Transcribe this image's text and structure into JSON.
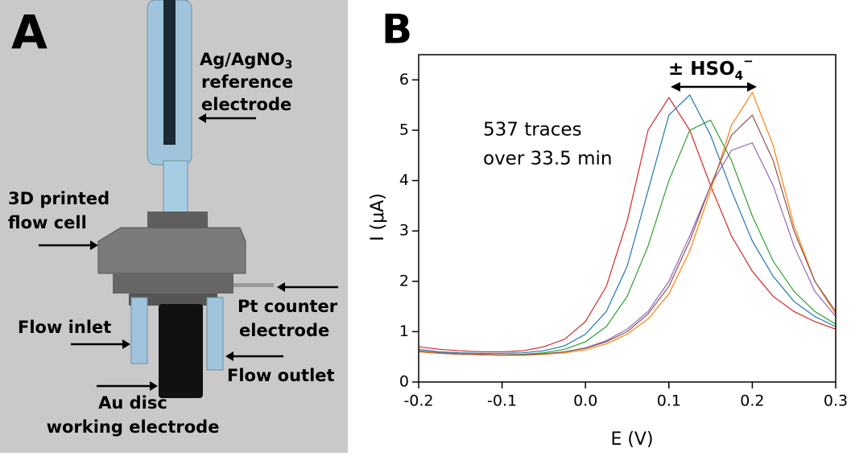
{
  "panel_a": {
    "label": "A",
    "reference": {
      "main": "Ag/AgNO",
      "subscript": "3",
      "lines": [
        "reference",
        "electrode"
      ]
    },
    "flow_cell": [
      "3D printed",
      "flow cell"
    ],
    "counter": [
      "Pt counter",
      "electrode"
    ],
    "inlet": "Flow inlet",
    "outlet": "Flow outlet",
    "working": [
      "Au disc",
      "working electrode"
    ]
  },
  "chart_data": {
    "type": "line",
    "label": "B",
    "xlabel": "E (V)",
    "ylabel": "I (μA)",
    "annotation": [
      "537 traces",
      "over 33.5 min"
    ],
    "shift_label": {
      "prefix": "± HSO",
      "subscript": "4",
      "superscript": "−"
    },
    "xlim": [
      -0.2,
      0.3
    ],
    "ylim": [
      0,
      6.5
    ],
    "xticks": [
      -0.2,
      -0.1,
      {
        "value": 0,
        "label": "0.0"
      },
      0.1,
      0.2,
      0.3
    ],
    "yticks": [
      0,
      1,
      2,
      3,
      4,
      5,
      6
    ],
    "x": [
      -0.2,
      -0.175,
      -0.15,
      -0.125,
      -0.1,
      -0.075,
      -0.05,
      -0.025,
      0,
      0.025,
      0.05,
      0.075,
      0.1,
      0.125,
      0.15,
      0.175,
      0.2,
      0.225,
      0.25,
      0.275,
      0.3
    ],
    "series": [
      {
        "color": "#d62728",
        "values": [
          0.7,
          0.65,
          0.62,
          0.6,
          0.6,
          0.62,
          0.7,
          0.85,
          1.2,
          1.9,
          3.2,
          5.0,
          5.65,
          5.0,
          3.9,
          2.9,
          2.2,
          1.7,
          1.4,
          1.2,
          1.05
        ]
      },
      {
        "color": "#1f77b4",
        "values": [
          0.65,
          0.6,
          0.58,
          0.57,
          0.57,
          0.58,
          0.62,
          0.72,
          0.95,
          1.4,
          2.3,
          3.8,
          5.3,
          5.7,
          4.9,
          3.8,
          2.8,
          2.1,
          1.6,
          1.3,
          1.1
        ]
      },
      {
        "color": "#2ca02c",
        "values": [
          0.6,
          0.57,
          0.55,
          0.54,
          0.54,
          0.55,
          0.58,
          0.65,
          0.8,
          1.1,
          1.7,
          2.7,
          4.0,
          5.0,
          5.2,
          4.4,
          3.3,
          2.4,
          1.8,
          1.4,
          1.15
        ]
      },
      {
        "color": "#9467bd",
        "values": [
          0.6,
          0.57,
          0.55,
          0.54,
          0.53,
          0.54,
          0.56,
          0.6,
          0.68,
          0.82,
          1.05,
          1.4,
          2.0,
          2.9,
          3.9,
          4.6,
          4.75,
          3.9,
          2.7,
          1.8,
          1.3
        ]
      },
      {
        "color": "#ff7f0e",
        "values": [
          0.6,
          0.57,
          0.55,
          0.54,
          0.53,
          0.53,
          0.55,
          0.58,
          0.64,
          0.76,
          0.95,
          1.25,
          1.75,
          2.6,
          3.8,
          5.1,
          5.75,
          4.7,
          3.1,
          2.0,
          1.35
        ]
      },
      {
        "color": "#8c564b",
        "values": [
          0.62,
          0.58,
          0.56,
          0.55,
          0.54,
          0.54,
          0.56,
          0.6,
          0.67,
          0.8,
          1.0,
          1.35,
          1.9,
          2.8,
          3.9,
          4.9,
          5.3,
          4.4,
          3.0,
          2.0,
          1.4
        ]
      }
    ]
  }
}
